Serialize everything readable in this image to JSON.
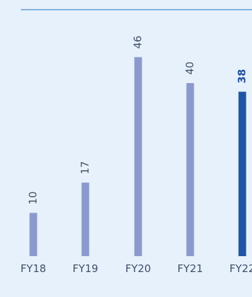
{
  "chart_data": {
    "type": "bar",
    "categories": [
      "FY18",
      "FY19",
      "FY20",
      "FY21",
      "FY22"
    ],
    "values": [
      10,
      17,
      46,
      40,
      38
    ],
    "highlight_index": 4,
    "ylim": [
      0,
      50
    ],
    "colors": {
      "background": "#e7f1fb",
      "bar": "#8c99cd",
      "highlight_bar": "#1f55a3",
      "rule": "#5b9bd5",
      "text": "#3f4f66",
      "highlight_text": "#1c4f9c"
    }
  }
}
